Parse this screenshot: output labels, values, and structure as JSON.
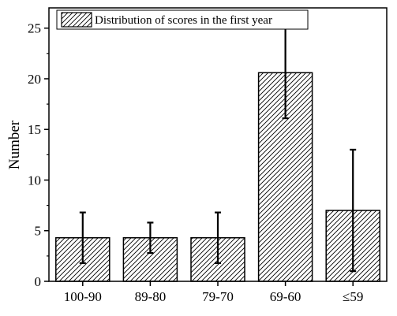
{
  "chart_data": {
    "type": "bar",
    "categories": [
      "100-90",
      "89-80",
      "79-70",
      "69-60",
      "≤59"
    ],
    "series": [
      {
        "name": "Distribution of scores in the first year",
        "values": [
          4.3,
          4.3,
          4.3,
          20.6,
          7.0
        ],
        "error": [
          2.5,
          1.5,
          2.5,
          4.5,
          6.0
        ]
      }
    ],
    "xlabel": "",
    "ylabel": "Number",
    "ylim": [
      0,
      27
    ],
    "yticks": [
      0,
      5,
      10,
      15,
      20,
      25
    ],
    "legend_position": "top-left",
    "grid": false,
    "bar_fill": "hatched",
    "colors": {
      "bar_stroke": "#000000",
      "hatch": "#000000",
      "background": "#ffffff"
    }
  }
}
